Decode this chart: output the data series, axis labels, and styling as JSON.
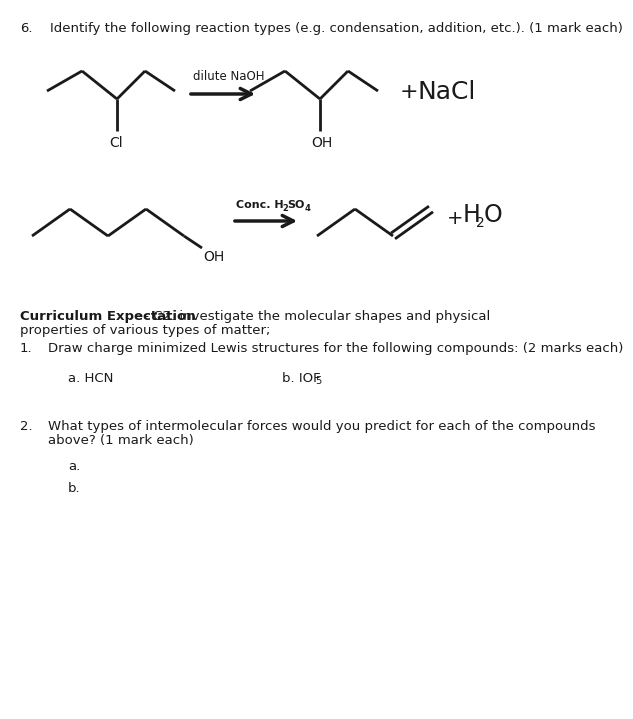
{
  "bg_color": "#ffffff",
  "line_color": "#1a1a1a",
  "q6_number": "6.",
  "q6_text": "Identify the following reaction types (e.g. condensation, addition, etc.). (1 mark each)",
  "rxn1_reagent": "dilute NaOH",
  "rxn1_product_label_plus": "+",
  "rxn1_product_label_nacl": "NaCl",
  "rxn1_reactant_cl": "Cl",
  "rxn1_product_oh": "OH",
  "rxn2_reagent_main": "Conc. H",
  "rxn2_reagent_sub": "2",
  "rxn2_reagent_rest": "SO",
  "rxn2_reagent_sub2": "4",
  "rxn2_product_h2o_main": "H",
  "rxn2_product_h2o_sub": "2",
  "rxn2_product_h2o_rest": "O",
  "rxn2_product_plus": "+",
  "rxn2_reactant_oh": "OH",
  "curriculum_bold": "Curriculum Expectation",
  "curriculum_rest": " - C2. investigate the molecular shapes and physical",
  "curriculum_line2": "properties of various types of matter;",
  "q1_number": "1.",
  "q1_text": "Draw charge minimized Lewis structures for the following compounds: (2 marks each)",
  "q1a_label": "a. HCN",
  "q1b_main": "b. IOF",
  "q1b_sub": "5",
  "q2_number": "2.",
  "q2_line1": "What types of intermolecular forces would you predict for each of the compounds",
  "q2_line2": "above? (1 mark each)",
  "q2a_label": "a.",
  "q2b_label": "b.",
  "lw_mol": 2.0,
  "lw_arrow": 2.5
}
